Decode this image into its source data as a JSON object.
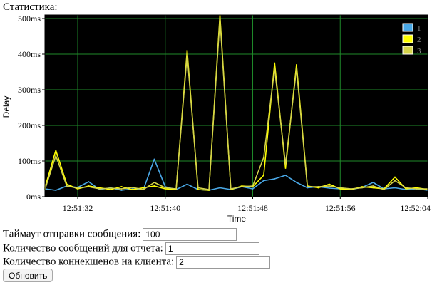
{
  "panel": {
    "title": "Статистика:"
  },
  "chart_data": {
    "type": "line",
    "xlabel": "Time",
    "ylabel": "Delay",
    "y_unit": "ms",
    "ylim": [
      0,
      510
    ],
    "yticks": [
      0,
      100,
      200,
      300,
      400,
      500
    ],
    "ytick_labels": [
      "0ms",
      "100ms",
      "200ms",
      "300ms",
      "400ms",
      "500ms"
    ],
    "xlim": [
      "12:51:29",
      "12:52:04"
    ],
    "xticks": [
      "12:51:32",
      "12:51:40",
      "12:51:48",
      "12:51:56",
      "12:52:04"
    ],
    "grid": true,
    "legend_position": "top-right",
    "background": "#000000",
    "grid_color": "#1f8a2a",
    "series": [
      {
        "name": "1",
        "color": "#4aa8e6",
        "points": [
          [
            "12:51:29",
            22
          ],
          [
            "12:51:30",
            18
          ],
          [
            "12:51:31",
            30
          ],
          [
            "12:51:32",
            26
          ],
          [
            "12:51:33",
            42
          ],
          [
            "12:51:34",
            20
          ],
          [
            "12:51:35",
            25
          ],
          [
            "12:51:36",
            18
          ],
          [
            "12:51:37",
            22
          ],
          [
            "12:51:38",
            20
          ],
          [
            "12:51:39",
            105
          ],
          [
            "12:51:40",
            28
          ],
          [
            "12:51:41",
            20
          ],
          [
            "12:51:42",
            35
          ],
          [
            "12:51:43",
            20
          ],
          [
            "12:51:44",
            18
          ],
          [
            "12:51:45",
            25
          ],
          [
            "12:51:46",
            20
          ],
          [
            "12:51:47",
            28
          ],
          [
            "12:51:48",
            22
          ],
          [
            "12:51:49",
            45
          ],
          [
            "12:51:50",
            50
          ],
          [
            "12:51:51",
            60
          ],
          [
            "12:51:52",
            40
          ],
          [
            "12:51:53",
            25
          ],
          [
            "12:51:54",
            28
          ],
          [
            "12:51:55",
            24
          ],
          [
            "12:51:56",
            22
          ],
          [
            "12:51:57",
            20
          ],
          [
            "12:51:58",
            26
          ],
          [
            "12:51:59",
            40
          ],
          [
            "12:52:00",
            22
          ],
          [
            "12:52:01",
            25
          ],
          [
            "12:52:02",
            20
          ],
          [
            "12:52:03",
            22
          ],
          [
            "12:52:04",
            18
          ]
        ]
      },
      {
        "name": "2",
        "color": "#ffff00",
        "points": [
          [
            "12:51:29",
            25
          ],
          [
            "12:51:30",
            130
          ],
          [
            "12:51:31",
            35
          ],
          [
            "12:51:32",
            22
          ],
          [
            "12:51:33",
            30
          ],
          [
            "12:51:34",
            25
          ],
          [
            "12:51:35",
            20
          ],
          [
            "12:51:36",
            28
          ],
          [
            "12:51:37",
            20
          ],
          [
            "12:51:38",
            25
          ],
          [
            "12:51:39",
            30
          ],
          [
            "12:51:40",
            22
          ],
          [
            "12:51:41",
            20
          ],
          [
            "12:51:42",
            410
          ],
          [
            "12:51:43",
            20
          ],
          [
            "12:51:44",
            18
          ],
          [
            "12:51:45",
            510
          ],
          [
            "12:51:46",
            20
          ],
          [
            "12:51:47",
            30
          ],
          [
            "12:51:48",
            28
          ],
          [
            "12:51:49",
            60
          ],
          [
            "12:51:50",
            375
          ],
          [
            "12:51:51",
            80
          ],
          [
            "12:51:52",
            370
          ],
          [
            "12:51:53",
            30
          ],
          [
            "12:51:54",
            25
          ],
          [
            "12:51:55",
            35
          ],
          [
            "12:51:56",
            22
          ],
          [
            "12:51:57",
            20
          ],
          [
            "12:51:58",
            28
          ],
          [
            "12:51:59",
            25
          ],
          [
            "12:52:00",
            22
          ],
          [
            "12:52:01",
            55
          ],
          [
            "12:52:02",
            22
          ],
          [
            "12:52:03",
            25
          ],
          [
            "12:52:04",
            20
          ]
        ]
      },
      {
        "name": "3",
        "color": "#d4d44a",
        "points": [
          [
            "12:51:29",
            20
          ],
          [
            "12:51:30",
            115
          ],
          [
            "12:51:31",
            30
          ],
          [
            "12:51:32",
            24
          ],
          [
            "12:51:33",
            28
          ],
          [
            "12:51:34",
            22
          ],
          [
            "12:51:35",
            24
          ],
          [
            "12:51:36",
            22
          ],
          [
            "12:51:37",
            26
          ],
          [
            "12:51:38",
            20
          ],
          [
            "12:51:39",
            40
          ],
          [
            "12:51:40",
            25
          ],
          [
            "12:51:41",
            22
          ],
          [
            "12:51:42",
            400
          ],
          [
            "12:51:43",
            25
          ],
          [
            "12:51:44",
            20
          ],
          [
            "12:51:45",
            500
          ],
          [
            "12:51:46",
            22
          ],
          [
            "12:51:47",
            28
          ],
          [
            "12:51:48",
            30
          ],
          [
            "12:51:49",
            110
          ],
          [
            "12:51:50",
            360
          ],
          [
            "12:51:51",
            90
          ],
          [
            "12:51:52",
            360
          ],
          [
            "12:51:53",
            28
          ],
          [
            "12:51:54",
            28
          ],
          [
            "12:51:55",
            30
          ],
          [
            "12:51:56",
            25
          ],
          [
            "12:51:57",
            22
          ],
          [
            "12:51:58",
            25
          ],
          [
            "12:51:59",
            30
          ],
          [
            "12:52:00",
            20
          ],
          [
            "12:52:01",
            45
          ],
          [
            "12:52:02",
            25
          ],
          [
            "12:52:03",
            22
          ],
          [
            "12:52:04",
            22
          ]
        ]
      }
    ]
  },
  "form": {
    "timeout": {
      "label": "Таймаут отправки сообщения:",
      "value": "100"
    },
    "messages_per_report": {
      "label": "Количество сообщений для отчета:",
      "value": "1"
    },
    "connections_per_client": {
      "label": "Количество коннекшенов на клиента:",
      "value": "2"
    },
    "refresh_label": "Обновить"
  }
}
